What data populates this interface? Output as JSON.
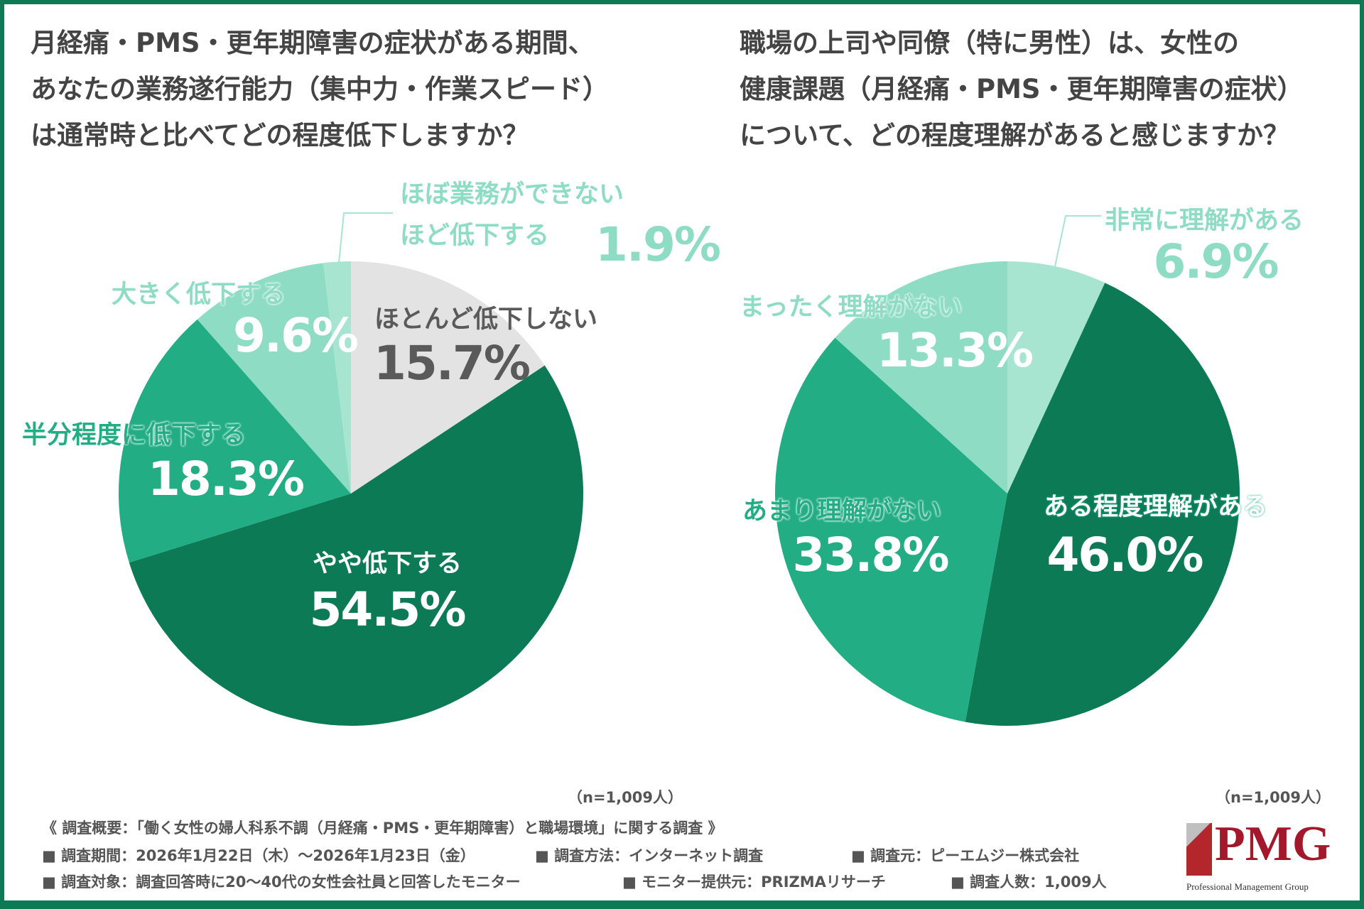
{
  "chart_data": [
    {
      "type": "pie",
      "title": "月経痛・PMS・更年期障害の症状がある期間、あなたの業務遂行能力（集中力・作業スピード）は通常時と比べてどの程度低下しますか？",
      "title_lines": [
        "月経痛・PMS・更年期障害の症状がある期間、",
        "あなたの業務遂行能力（集中力・作業スピード）",
        "は通常時と比べてどの程度低下しますか？"
      ],
      "categories": [
        "ほとんど低下しない",
        "やや低下する",
        "半分程度に低下する",
        "大きく低下する",
        "ほぼ業務ができないほど低下する"
      ],
      "label_lines": [
        [
          "ほとんど低下しない"
        ],
        [
          "やや低下する"
        ],
        [
          "半分程度に低下する"
        ],
        [
          "大きく低下する"
        ],
        [
          "ほぼ業務ができない",
          "ほど低下する"
        ]
      ],
      "values": [
        15.7,
        54.5,
        18.3,
        9.6,
        1.9
      ],
      "value_labels": [
        "15.7%",
        "54.5%",
        "18.3%",
        "9.6%",
        "1.9%"
      ],
      "colors": [
        "#e3e3e3",
        "#0b7a55",
        "#22ad84",
        "#8ddcc3",
        "#a7e5d1"
      ],
      "start": "12 o'clock, clockwise",
      "sample": "（n=1,009人）"
    },
    {
      "type": "pie",
      "title": "職場の上司や同僚（特に男性）は、女性の健康課題（月経痛・PMS・更年期障害の症状）について、どの程度理解があると感じますか？",
      "title_lines": [
        "職場の上司や同僚（特に男性）は、女性の",
        "健康課題（月経痛・PMS・更年期障害の症状）",
        "について、どの程度理解があると感じますか？"
      ],
      "categories": [
        "非常に理解がある",
        "ある程度理解がある",
        "あまり理解がない",
        "まったく理解がない"
      ],
      "values": [
        6.9,
        46.0,
        33.8,
        13.3
      ],
      "value_labels": [
        "6.9%",
        "46.0%",
        "33.8%",
        "13.3%"
      ],
      "colors": [
        "#a7e5d1",
        "#0b7a55",
        "#22ad84",
        "#8ddcc3"
      ],
      "start": "12 o'clock, clockwise",
      "sample": "（n=1,009人）"
    }
  ],
  "footer": {
    "summary": "《 調査概要：「働く女性の婦人科系不調（月経痛・PMS・更年期障害）と職場環境」に関する調査 》",
    "period": "■ 調査期間：2026年1月22日（木）～2026年1月23日（金）",
    "method": "■ 調査方法：インターネット調査",
    "source": "■ 調査元：ピーエムジー株式会社",
    "target": "■ 調査対象：調査回答時に20～40代の女性会社員と回答したモニター",
    "provider": "■ モニター提供元：PRIZMAリサーチ",
    "count": "■ 調査人数：1,009人"
  },
  "logo": {
    "text": "PMG",
    "subtitle": "Professional Management Group"
  },
  "colors": {
    "frame": "#0b7a55"
  }
}
